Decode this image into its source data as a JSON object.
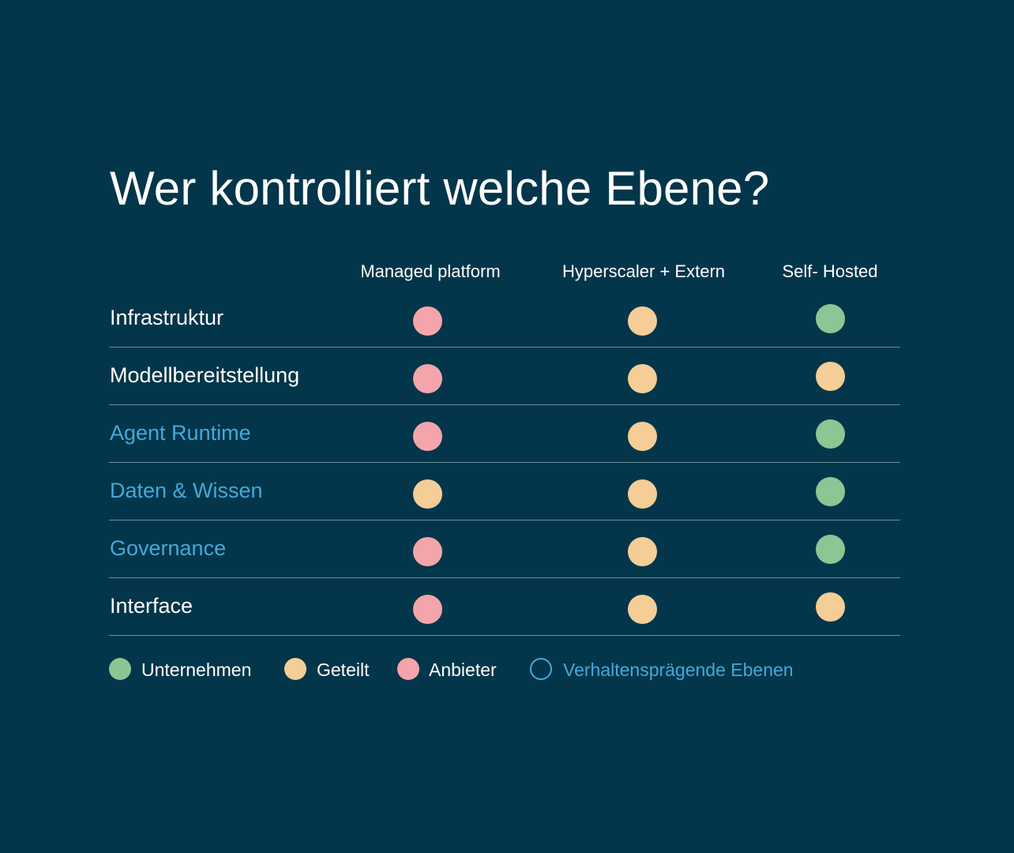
{
  "title": "Wer kontrolliert welche Ebene?",
  "colors": {
    "background": "#03364a",
    "unternehmen": "#8cc695",
    "geteilt": "#f5cd96",
    "anbieter": "#f3a5ab",
    "highlight": "#45a8d8"
  },
  "columns": [
    "Managed platform",
    "Hyperscaler + Extern",
    "Self- Hosted"
  ],
  "rows": [
    {
      "label": "Infrastruktur",
      "highlight": false,
      "values": [
        "anbieter",
        "geteilt",
        "unternehmen"
      ]
    },
    {
      "label": "Modellbereitstellung",
      "highlight": false,
      "values": [
        "anbieter",
        "geteilt",
        "geteilt"
      ]
    },
    {
      "label": "Agent Runtime",
      "highlight": true,
      "values": [
        "anbieter",
        "geteilt",
        "unternehmen"
      ]
    },
    {
      "label": "Daten & Wissen",
      "highlight": true,
      "values": [
        "geteilt",
        "geteilt",
        "unternehmen"
      ]
    },
    {
      "label": "Governance",
      "highlight": true,
      "values": [
        "anbieter",
        "geteilt",
        "unternehmen"
      ]
    },
    {
      "label": "Interface",
      "highlight": false,
      "values": [
        "anbieter",
        "geteilt",
        "geteilt"
      ]
    }
  ],
  "legend": [
    {
      "key": "unternehmen",
      "label": "Unternehmen"
    },
    {
      "key": "geteilt",
      "label": "Geteilt"
    },
    {
      "key": "anbieter",
      "label": "Anbieter"
    },
    {
      "key": "highlight",
      "label": "Verhaltensprägende Ebenen"
    }
  ]
}
